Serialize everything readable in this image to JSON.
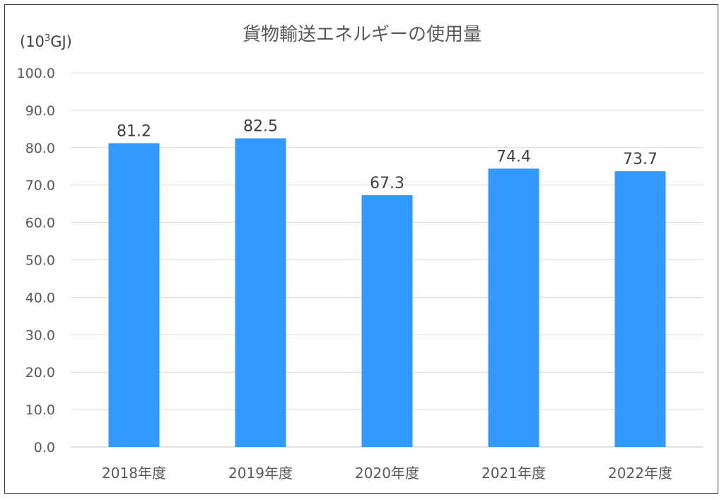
{
  "chart_data": {
    "type": "bar",
    "title": "貨物輸送エネルギーの使用量",
    "unit_label": {
      "prefix": "(10",
      "exponent": "3",
      "suffix": "GJ)"
    },
    "categories": [
      "2018年度",
      "2019年度",
      "2020年度",
      "2021年度",
      "2022年度"
    ],
    "values": [
      81.2,
      82.5,
      67.3,
      74.4,
      73.7
    ],
    "data_labels": [
      "81.2",
      "82.5",
      "67.3",
      "74.4",
      "73.7"
    ],
    "ylim": [
      0,
      100
    ],
    "y_ticks": [
      "0.0",
      "10.0",
      "20.0",
      "30.0",
      "40.0",
      "50.0",
      "60.0",
      "70.0",
      "80.0",
      "90.0",
      "100.0"
    ],
    "grid": true,
    "legend": "none",
    "bar_color": "#3399ff",
    "grid_color": "#d9d9d9"
  }
}
